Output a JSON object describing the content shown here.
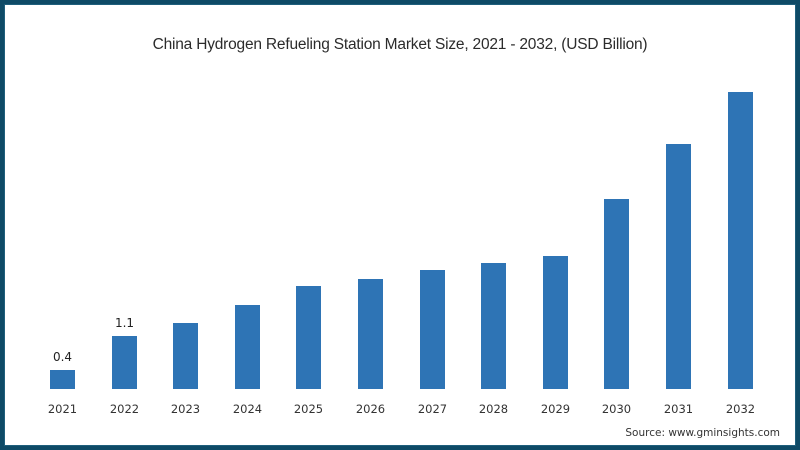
{
  "chart_data": {
    "type": "bar",
    "title": "China Hydrogen Refueling Station Market Size, 2021 - 2032, (USD Billion)",
    "xlabel": "",
    "ylabel": "",
    "categories": [
      "2021",
      "2022",
      "2023",
      "2024",
      "2025",
      "2026",
      "2027",
      "2028",
      "2029",
      "2030",
      "2031",
      "2032"
    ],
    "values": [
      0.4,
      1.1,
      1.36,
      1.73,
      2.12,
      2.27,
      2.45,
      2.6,
      2.74,
      3.92,
      5.05,
      6.12
    ],
    "data_labels": {
      "2021": "0.4",
      "2022": "1.1"
    },
    "ylim": [
      0,
      6.5
    ],
    "grid": false,
    "legend": null,
    "bar_color": "#2e74b5",
    "source": "Source: www.gminsights.com"
  },
  "labels": {
    "title": "China Hydrogen Refueling Station Market Size, 2021 - 2032, (USD Billion)",
    "source": "Source: www.gminsights.com",
    "dl0": "0.4",
    "dl1": "1.1"
  }
}
